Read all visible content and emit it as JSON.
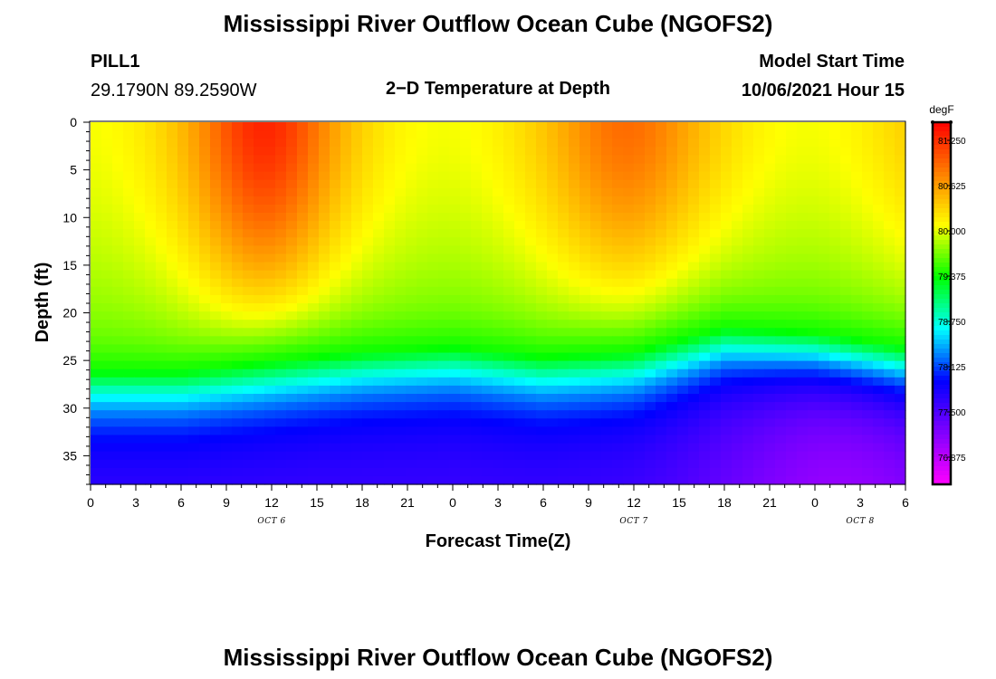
{
  "header": {
    "title": "Mississippi River Outflow Ocean Cube (NGOFS2)",
    "station": "PILL1",
    "coords": "29.1790N  89.2590W",
    "subtitle": "2−D Temperature at Depth",
    "model_start_label": "Model Start Time",
    "model_start_value": "10/06/2021 Hour 15"
  },
  "footer": {
    "title": "Mississippi River Outflow Ocean Cube (NGOFS2)"
  },
  "chart_data": {
    "type": "heatmap",
    "title": "2−D Temperature at Depth",
    "xlabel": "Forecast Time(Z)",
    "ylabel": "Depth (ft)",
    "x_range_hours": [
      0,
      54
    ],
    "y_range_ft": [
      0,
      38
    ],
    "y_inverted": true,
    "x_tick_hours": [
      0,
      3,
      6,
      9,
      12,
      15,
      18,
      21,
      24,
      27,
      30,
      33,
      36,
      39,
      42,
      45,
      48,
      51,
      54
    ],
    "x_tick_labels": [
      "0",
      "3",
      "6",
      "9",
      "12",
      "15",
      "18",
      "21",
      "0",
      "3",
      "6",
      "9",
      "12",
      "15",
      "18",
      "21",
      "0",
      "3",
      "6"
    ],
    "y_ticks": [
      0,
      5,
      10,
      15,
      20,
      25,
      30,
      35
    ],
    "date_labels": [
      {
        "hour": 12,
        "text": "OCT 6"
      },
      {
        "hour": 36,
        "text": "OCT 7"
      },
      {
        "hour": 51,
        "text": "OCT 8"
      }
    ],
    "colorbar": {
      "unit": "degF",
      "range": [
        76.5,
        81.5
      ],
      "ticks": [
        "81.250",
        "80.625",
        "80.000",
        "79.375",
        "78.750",
        "78.125",
        "77.500",
        "76.875"
      ],
      "colors": [
        "#ff00ff",
        "#8000ff",
        "#0000ff",
        "#00ffff",
        "#00ff00",
        "#ffff00",
        "#ff8000",
        "#ff0000"
      ]
    },
    "thermocline_depth_ft": [
      {
        "hour": 0,
        "value": 26
      },
      {
        "hour": 6,
        "value": 26
      },
      {
        "hour": 12,
        "value": 25
      },
      {
        "hour": 18,
        "value": 24
      },
      {
        "hour": 24,
        "value": 23.5
      },
      {
        "hour": 30,
        "value": 24.5
      },
      {
        "hour": 36,
        "value": 24
      },
      {
        "hour": 42,
        "value": 21.5
      },
      {
        "hour": 48,
        "value": 22
      },
      {
        "hour": 54,
        "value": 23.5
      }
    ],
    "surface_warm_centers": [
      {
        "hour": 11.5,
        "depth": 0,
        "value": 81.3
      },
      {
        "hour": 35.5,
        "depth": 0,
        "value": 80.9
      }
    ],
    "bottom_min": {
      "hour": 50,
      "depth": 38,
      "value": 76.6
    }
  }
}
